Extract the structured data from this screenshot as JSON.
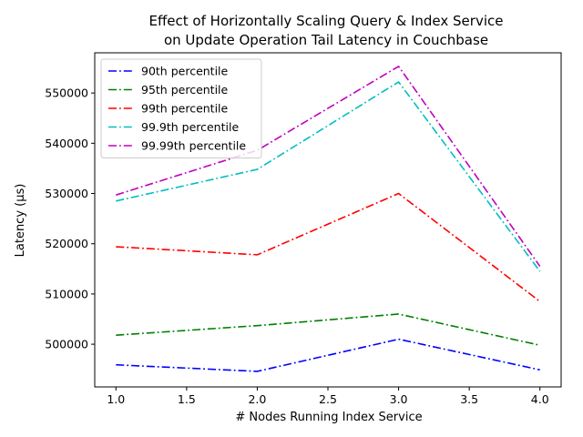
{
  "chart_data": {
    "type": "line",
    "title_lines": [
      "Effect of Horizontally Scaling Query & Index Service",
      "on Update Operation Tail Latency in Couchbase"
    ],
    "xlabel": "# Nodes Running Index Service",
    "ylabel": "Latency (µs)",
    "xlim": [
      0.85,
      4.15
    ],
    "ylim": [
      491500,
      558000
    ],
    "xticks": [
      1.0,
      1.5,
      2.0,
      2.5,
      3.0,
      3.5,
      4.0
    ],
    "xtick_labels": [
      "1.0",
      "1.5",
      "2.0",
      "2.5",
      "3.0",
      "3.5",
      "4.0"
    ],
    "yticks": [
      500000,
      510000,
      520000,
      530000,
      540000,
      550000
    ],
    "ytick_labels": [
      "500000",
      "510000",
      "520000",
      "530000",
      "540000",
      "550000"
    ],
    "grid": false,
    "legend_position": "upper-left",
    "x": [
      1,
      2,
      3,
      4
    ],
    "series": [
      {
        "name": "90th percentile",
        "color": "#0000ff",
        "values": [
          495900,
          494600,
          501000,
          494900
        ]
      },
      {
        "name": "95th percentile",
        "color": "#008000",
        "values": [
          501800,
          503700,
          506000,
          499800
        ]
      },
      {
        "name": "99th percentile",
        "color": "#ff0000",
        "values": [
          519400,
          517800,
          530000,
          508500
        ]
      },
      {
        "name": "99.9th percentile",
        "color": "#00bfbf",
        "values": [
          528500,
          534800,
          552200,
          514500
        ]
      },
      {
        "name": "99.99th percentile",
        "color": "#bf00bf",
        "values": [
          529700,
          538600,
          555300,
          515500
        ]
      }
    ]
  }
}
